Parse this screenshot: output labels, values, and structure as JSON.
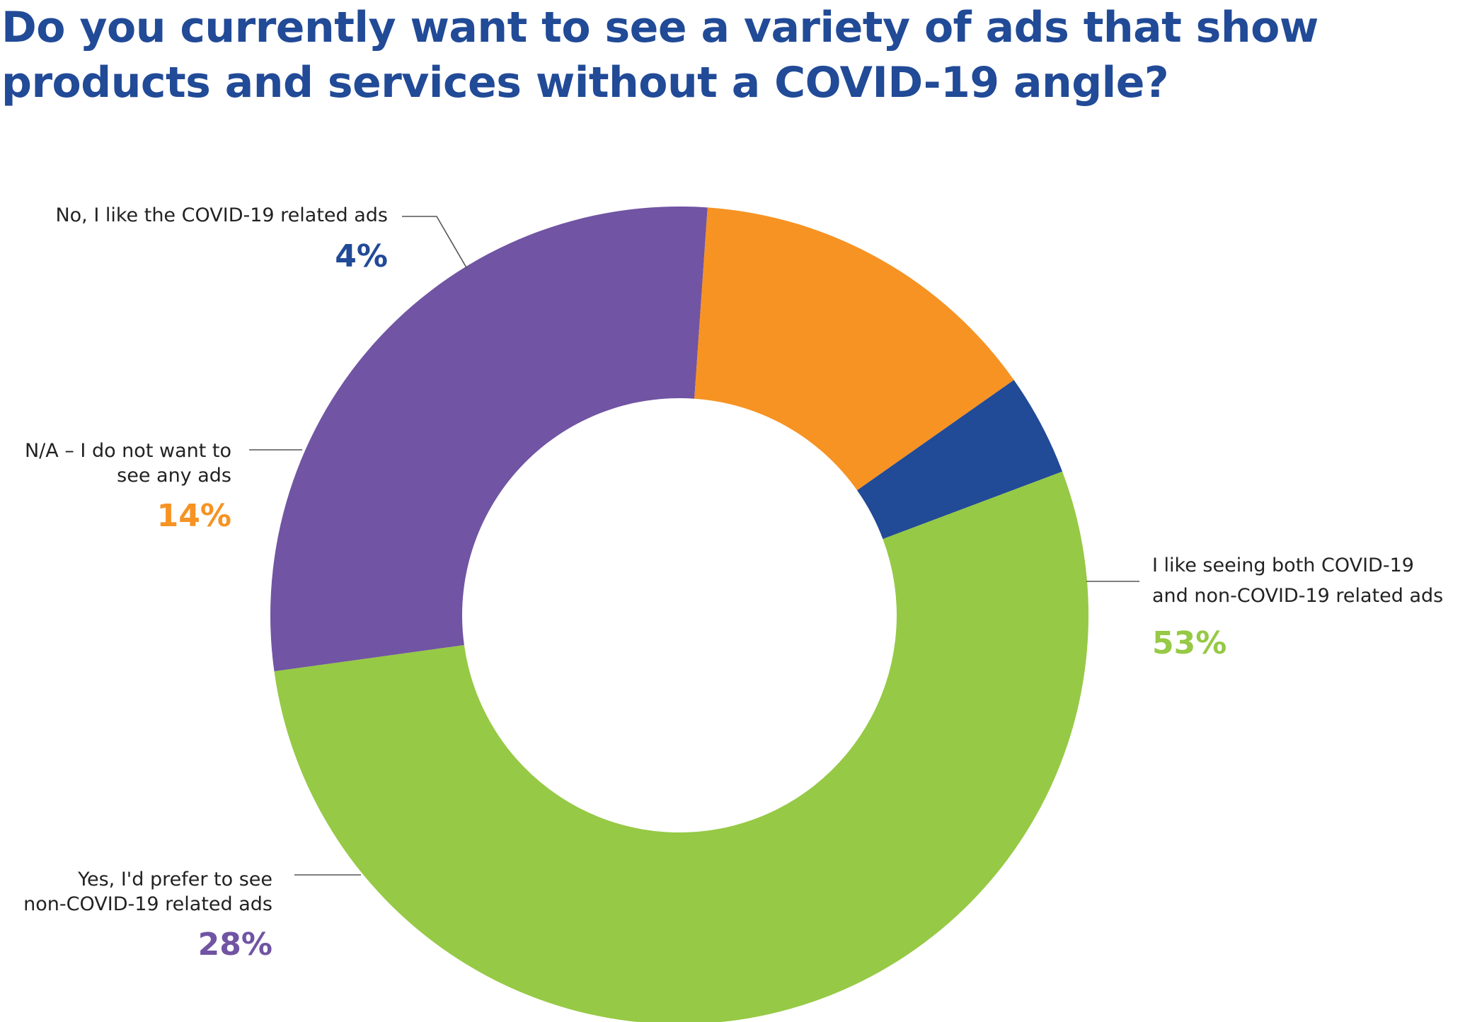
{
  "chart_data": {
    "type": "pie",
    "variant": "donut",
    "title": "Do you currently want to see a variety of ads that show products and services without a COVID-19 angle?",
    "slices": [
      {
        "key": "both",
        "label_lines": [
          "I like seeing both COVID-19",
          "and non-COVID-19 related ads"
        ],
        "value": 53,
        "value_label": "53%",
        "color": "#96c945"
      },
      {
        "key": "non_covid",
        "label_lines": [
          "Yes, I'd prefer to see",
          "non-COVID-19 related ads"
        ],
        "value": 28,
        "value_label": "28%",
        "color": "#7154a3"
      },
      {
        "key": "no_ads",
        "label_lines": [
          "N/A – I do not want to",
          "see any ads"
        ],
        "value": 14,
        "value_label": "14%",
        "color": "#f69323"
      },
      {
        "key": "covid_ads",
        "label_lines": [
          "No, I like the COVID-19 related ads"
        ],
        "value": 4,
        "value_label": "4%",
        "color": "#214a97"
      }
    ],
    "legend": "none",
    "labels": "outside with leader lines"
  },
  "colors": {
    "title": "#214a97",
    "label_text": "#222222",
    "leader_line": "#555555"
  }
}
